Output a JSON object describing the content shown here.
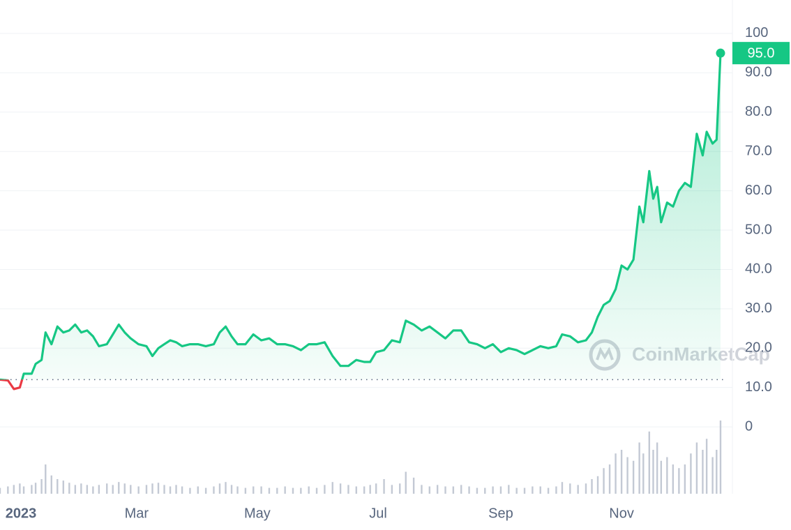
{
  "chart_data": {
    "type": "line",
    "x": [
      -10,
      -6,
      -3,
      0,
      2,
      6,
      8,
      11,
      13,
      16,
      19,
      22,
      25,
      28,
      31,
      34,
      37,
      40,
      44,
      47,
      50,
      53,
      56,
      60,
      64,
      67,
      70,
      73,
      76,
      79,
      82,
      86,
      90,
      94,
      98,
      101,
      104,
      107,
      110,
      114,
      118,
      122,
      126,
      130,
      134,
      138,
      142,
      146,
      150,
      154,
      158,
      162,
      166,
      170,
      174,
      177,
      180,
      184,
      188,
      192,
      195,
      199,
      203,
      207,
      211,
      215,
      219,
      223,
      227,
      231,
      235,
      239,
      243,
      247,
      251,
      255,
      259,
      263,
      267,
      271,
      274,
      278,
      282,
      286,
      289,
      292,
      295,
      298,
      301,
      304,
      307,
      310,
      313,
      315,
      318,
      320,
      322,
      324,
      327,
      330,
      333,
      336,
      339,
      342,
      345,
      347,
      350,
      352,
      354
    ],
    "series": [
      {
        "color": "#16c784",
        "values": [
          12,
          11.8,
          9.6,
          10,
          13.5,
          13.5,
          16,
          17,
          24,
          21,
          25.5,
          24,
          24.5,
          26,
          24,
          24.5,
          23,
          20.5,
          21,
          23.5,
          26,
          24,
          22.5,
          21,
          20.5,
          18,
          20,
          21,
          22,
          21.5,
          20.5,
          21,
          21,
          20.5,
          21,
          24,
          25.5,
          23,
          21,
          21,
          23.5,
          22,
          22.5,
          21,
          21,
          20.5,
          19.5,
          21,
          21,
          21.5,
          18,
          15.5,
          15.5,
          17,
          16.5,
          16.5,
          19,
          19.5,
          22,
          21.5,
          27,
          26,
          24.5,
          25.5,
          24,
          22.5,
          24.5,
          24.5,
          21.5,
          21,
          20,
          21,
          19,
          20,
          19.5,
          18.5,
          19.5,
          20.5,
          20,
          20.5,
          23.5,
          23,
          21.5,
          22,
          24,
          28,
          31,
          32,
          35,
          41,
          40,
          42.5,
          56,
          52,
          65,
          58,
          61,
          52,
          57,
          56,
          60,
          62,
          61,
          74.5,
          69,
          75,
          72,
          73,
          95
        ],
        "value_labels": [
          null,
          null,
          null,
          null,
          null,
          null,
          null,
          null,
          null,
          null,
          null,
          null,
          null,
          null,
          null,
          null,
          null,
          null,
          null,
          null,
          null,
          null,
          null,
          null,
          null,
          null,
          null,
          null,
          null,
          null,
          null,
          null,
          null,
          null,
          null,
          null,
          null,
          null,
          null,
          null,
          null,
          null,
          null,
          null,
          null,
          null,
          null,
          null,
          null,
          null,
          null,
          null,
          null,
          null,
          null,
          null,
          null,
          null,
          null,
          null,
          null,
          null,
          null,
          null,
          null,
          null,
          null,
          null,
          null,
          null,
          null,
          null,
          null,
          null,
          null,
          null,
          null,
          null,
          null,
          null,
          null,
          null,
          null,
          null,
          null,
          null,
          null,
          null,
          null,
          null,
          null,
          null,
          null,
          null,
          null,
          null,
          null,
          null,
          null,
          null,
          null,
          null,
          null,
          null,
          null,
          null,
          null,
          null,
          "95.0"
        ]
      }
    ],
    "volume": {
      "color": "#c3c9d4",
      "values": [
        8,
        10,
        12,
        14,
        10,
        12,
        15,
        20,
        40,
        25,
        20,
        18,
        15,
        12,
        14,
        12,
        10,
        12,
        14,
        12,
        16,
        14,
        12,
        10,
        12,
        14,
        15,
        12,
        10,
        12,
        10,
        8,
        10,
        8,
        10,
        14,
        16,
        12,
        10,
        8,
        10,
        10,
        8,
        8,
        10,
        8,
        8,
        10,
        8,
        12,
        16,
        14,
        12,
        10,
        10,
        12,
        14,
        20,
        12,
        14,
        30,
        22,
        12,
        10,
        12,
        10,
        10,
        12,
        10,
        8,
        8,
        10,
        10,
        12,
        8,
        8,
        10,
        10,
        8,
        10,
        16,
        14,
        12,
        14,
        20,
        24,
        35,
        40,
        55,
        60,
        50,
        45,
        70,
        55,
        85,
        60,
        70,
        45,
        50,
        40,
        35,
        40,
        55,
        70,
        60,
        75,
        50,
        60,
        100
      ]
    },
    "baseline": 12,
    "below_color": "#ea3943",
    "xlim": [
      -10,
      360
    ],
    "xticks": [
      {
        "value": 0,
        "label": "2023"
      },
      {
        "value": 59,
        "label": "Mar"
      },
      {
        "value": 120,
        "label": "May"
      },
      {
        "value": 181,
        "label": "Jul"
      },
      {
        "value": 243,
        "label": "Sep"
      },
      {
        "value": 304,
        "label": "Nov"
      }
    ],
    "ylim": [
      -17,
      108.5
    ],
    "yticks": [
      0,
      {
        "value": 10,
        "label": "10.0"
      },
      {
        "value": 20,
        "label": "20.0"
      },
      {
        "value": 30,
        "label": "30.0"
      },
      {
        "value": 40,
        "label": "40.0"
      },
      {
        "value": 50,
        "label": "50.0"
      },
      {
        "value": 60,
        "label": "60.0"
      },
      {
        "value": 70,
        "label": "70.0"
      },
      {
        "value": 80,
        "label": "80.0"
      },
      {
        "value": 90,
        "label": "90.0"
      },
      100
    ],
    "grid": true,
    "watermark": "CoinMarketCap"
  }
}
